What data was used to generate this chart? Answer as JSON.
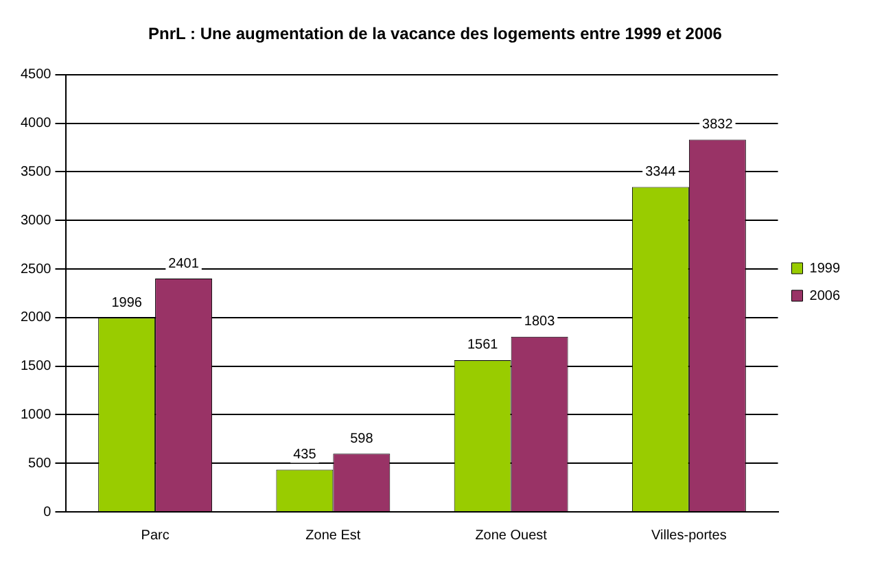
{
  "chart_data": {
    "type": "bar",
    "title": "PnrL : Une augmentation de la vacance des logements entre 1999 et 2006",
    "categories": [
      "Parc",
      "Zone Est",
      "Zone Ouest",
      "Villes-portes"
    ],
    "series": [
      {
        "name": "1999",
        "color": "#99cc00",
        "values": [
          1996,
          435,
          1561,
          3344
        ]
      },
      {
        "name": "2006",
        "color": "#993366",
        "values": [
          2401,
          598,
          1803,
          3832
        ]
      }
    ],
    "ylim": [
      0,
      4500
    ],
    "yticks": [
      0,
      500,
      1000,
      1500,
      2000,
      2500,
      3000,
      3500,
      4000,
      4500
    ],
    "grid": "y",
    "legend": "right",
    "data_labels": true
  }
}
